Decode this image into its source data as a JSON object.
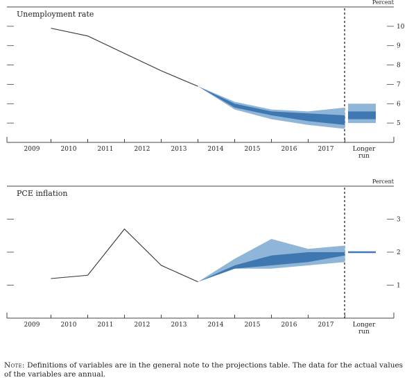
{
  "note": {
    "lead": "Note:",
    "text": "Definitions of variables are in the general note to the projections table. The data for the actual values of the variables are annual."
  },
  "colors": {
    "line": "#333333",
    "range_light": "#8fb6d9",
    "range_dark": "#3f78b0",
    "axis": "#444444",
    "dashed": "#333333"
  },
  "chart_data": [
    {
      "type": "area",
      "title": "Unemployment rate",
      "unit_label": "Percent",
      "categories": [
        "2009",
        "2010",
        "2011",
        "2012",
        "2013",
        "2014",
        "2015",
        "2016",
        "2017",
        "Longer run"
      ],
      "ylim": [
        4,
        11
      ],
      "yticks": [
        5,
        6,
        7,
        8,
        9,
        10
      ],
      "actual": {
        "x": [
          "2009",
          "2010",
          "2011",
          "2012",
          "2013"
        ],
        "y": [
          9.9,
          9.5,
          8.6,
          7.7,
          6.9
        ]
      },
      "central_tendency": {
        "x": [
          "2013",
          "2014",
          "2015",
          "2016",
          "2017"
        ],
        "low": [
          6.9,
          5.8,
          5.4,
          5.1,
          4.9
        ],
        "high": [
          6.9,
          6.0,
          5.6,
          5.5,
          5.4
        ]
      },
      "range": {
        "x": [
          "2013",
          "2014",
          "2015",
          "2016",
          "2017"
        ],
        "low": [
          6.9,
          5.7,
          5.2,
          4.9,
          4.7
        ],
        "high": [
          6.9,
          6.1,
          5.7,
          5.6,
          5.8
        ]
      },
      "longer_run": {
        "central_tendency": [
          5.2,
          5.6
        ],
        "range": [
          5.0,
          6.0
        ]
      }
    },
    {
      "type": "area",
      "title": "PCE inflation",
      "unit_label": "Percent",
      "categories": [
        "2009",
        "2010",
        "2011",
        "2012",
        "2013",
        "2014",
        "2015",
        "2016",
        "2017",
        "Longer run"
      ],
      "ylim": [
        0,
        4
      ],
      "yticks": [
        1,
        2,
        3
      ],
      "actual": {
        "x": [
          "2009",
          "2010",
          "2011",
          "2012",
          "2013"
        ],
        "y": [
          1.2,
          1.3,
          2.7,
          1.6,
          1.1
        ]
      },
      "central_tendency": {
        "x": [
          "2013",
          "2014",
          "2015",
          "2016",
          "2017"
        ],
        "low": [
          1.1,
          1.5,
          1.6,
          1.7,
          1.9
        ],
        "high": [
          1.1,
          1.6,
          1.9,
          2.0,
          2.0
        ]
      },
      "range": {
        "x": [
          "2013",
          "2014",
          "2015",
          "2016",
          "2017"
        ],
        "low": [
          1.1,
          1.5,
          1.5,
          1.6,
          1.7
        ],
        "high": [
          1.1,
          1.8,
          2.4,
          2.1,
          2.2
        ]
      },
      "longer_run": {
        "central_tendency": [
          1.98,
          2.02
        ],
        "range": [
          1.97,
          2.03
        ]
      }
    }
  ]
}
